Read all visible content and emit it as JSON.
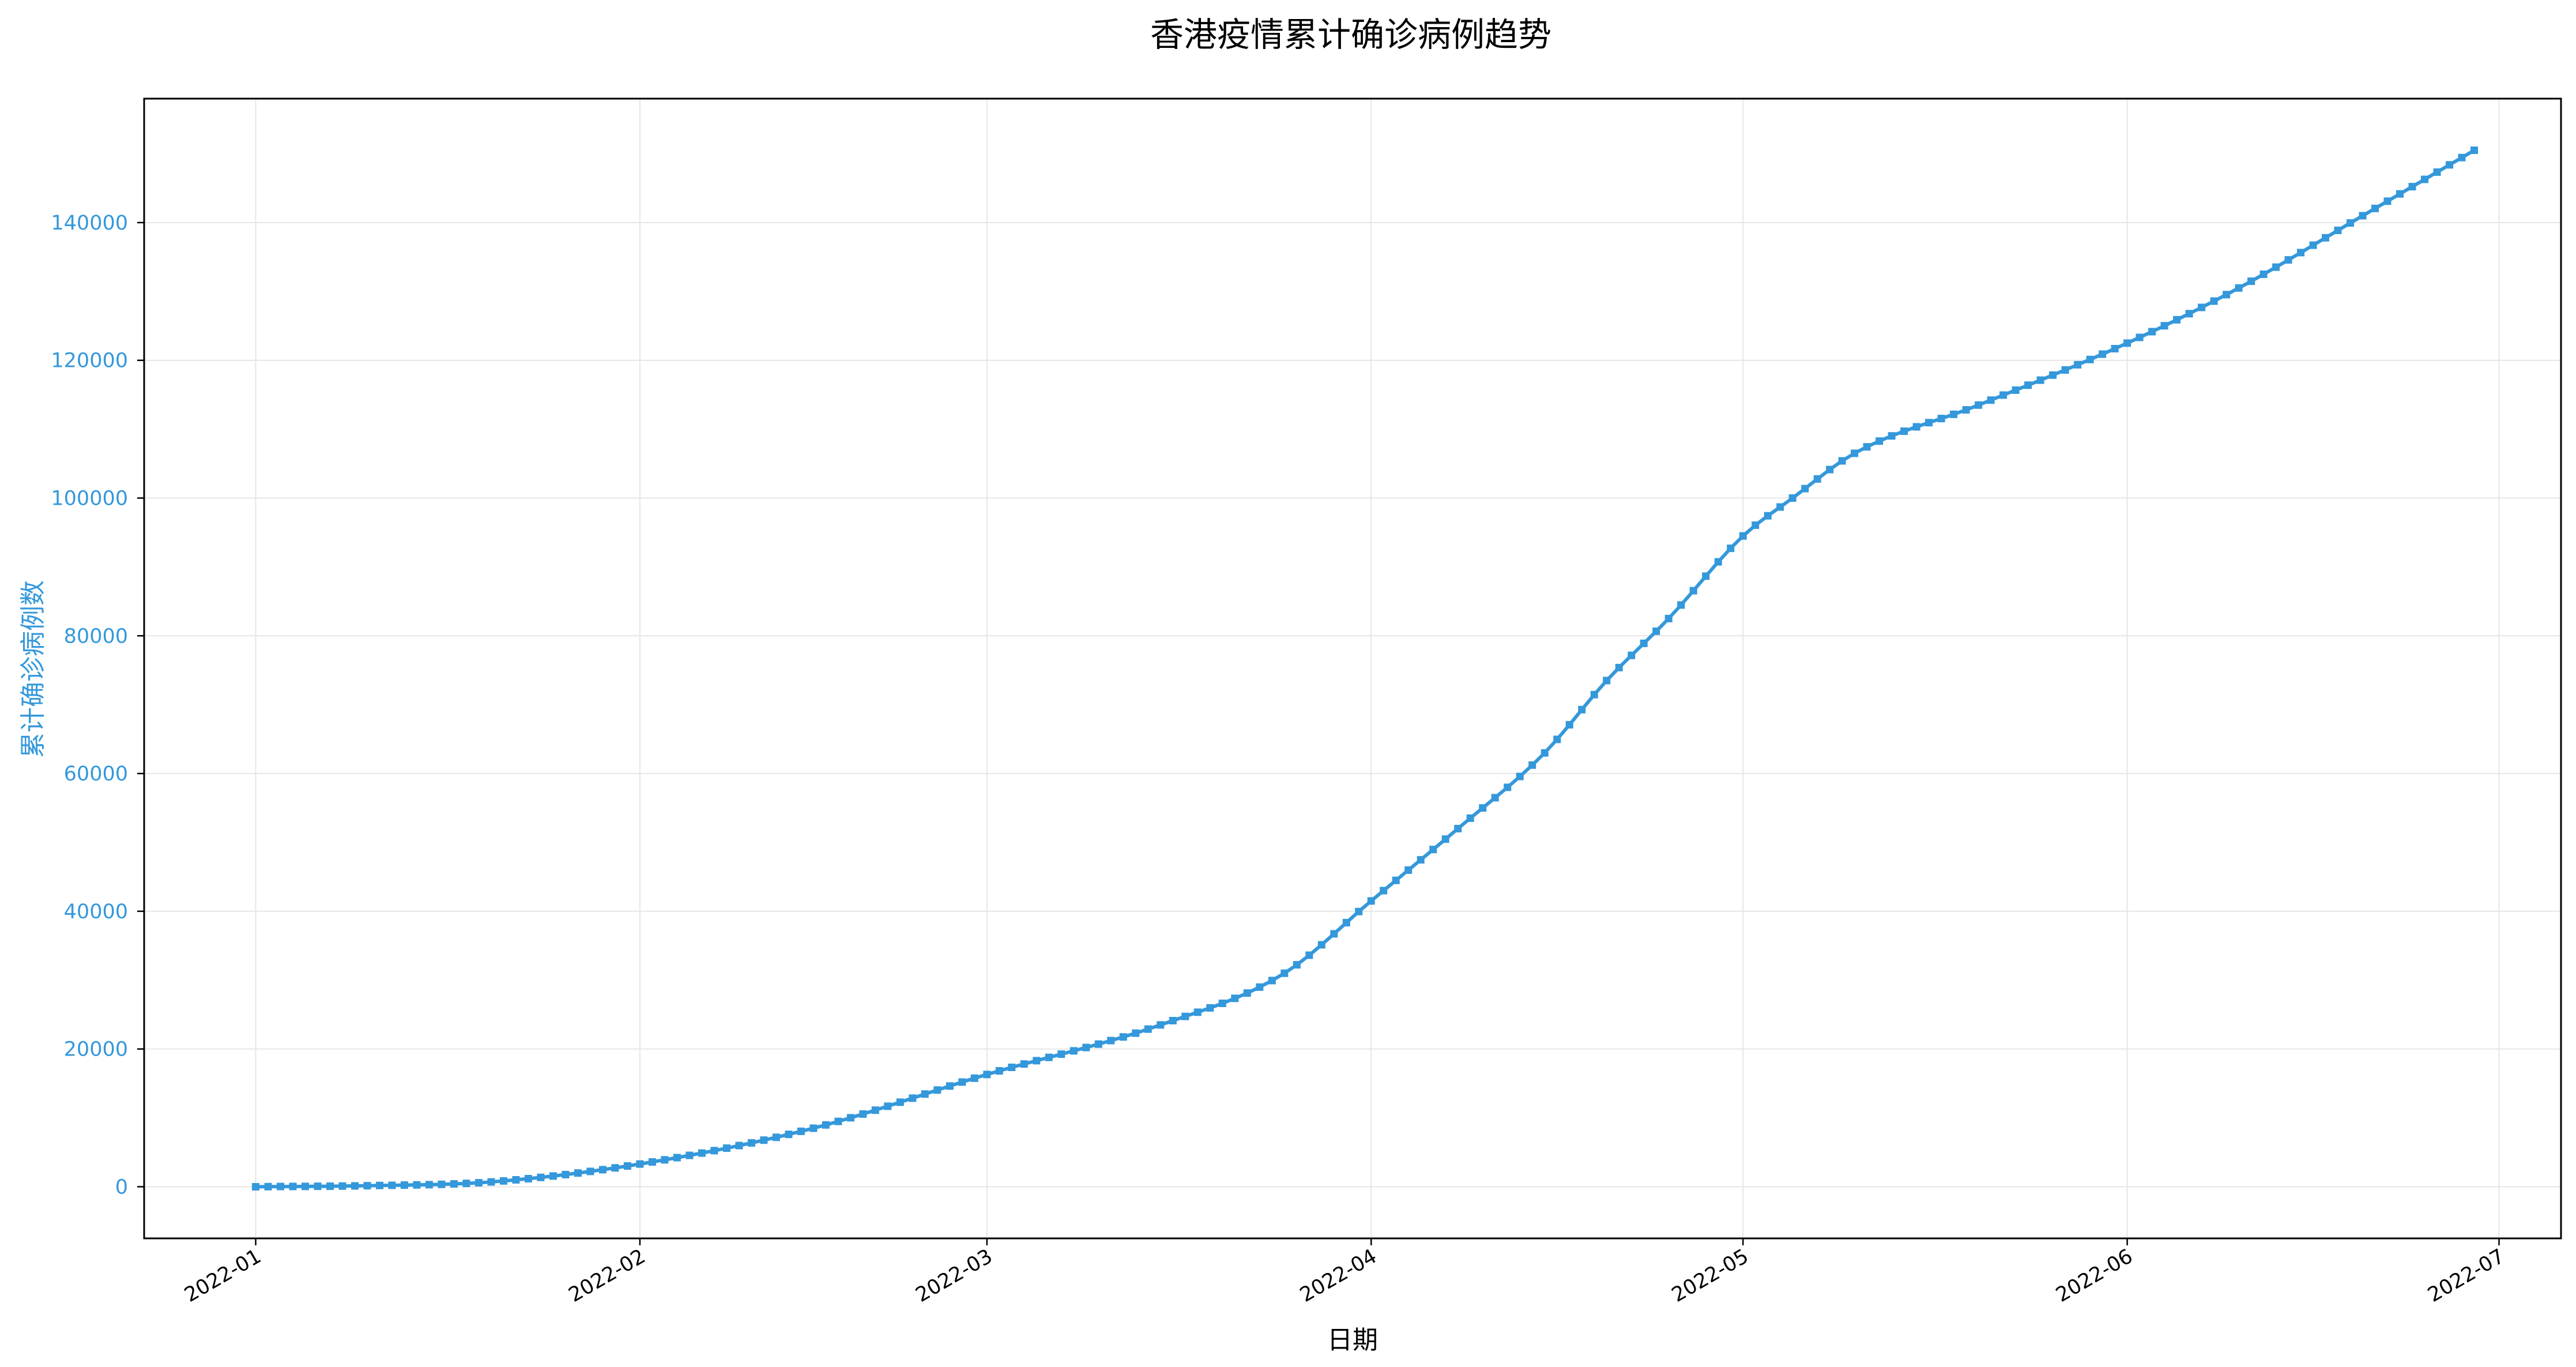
{
  "chart_data": {
    "type": "line",
    "title": "香港疫情累计确诊病例趋势",
    "xlabel": "日期",
    "ylabel": "累计确诊病例数",
    "x_range": [
      "2021-12-23",
      "2022-07-06"
    ],
    "ylim": [
      -7500,
      158000
    ],
    "grid": true,
    "colors": {
      "series": "#3498db",
      "y_axis_text": "#3498db",
      "text": "#000000",
      "grid": "#e6e6e6"
    },
    "x_ticks": [
      {
        "date": "2022-01-01",
        "label": "2022-01"
      },
      {
        "date": "2022-02-01",
        "label": "2022-02"
      },
      {
        "date": "2022-03-01",
        "label": "2022-03"
      },
      {
        "date": "2022-04-01",
        "label": "2022-04"
      },
      {
        "date": "2022-05-01",
        "label": "2022-05"
      },
      {
        "date": "2022-06-01",
        "label": "2022-06"
      },
      {
        "date": "2022-07-01",
        "label": "2022-07"
      }
    ],
    "y_ticks": [
      0,
      20000,
      40000,
      60000,
      80000,
      100000,
      120000,
      140000
    ],
    "series": [
      {
        "start_date": "2022-01-01",
        "end_date": "2022-06-29",
        "step_days": 1,
        "anchors": [
          [
            "2022-01-01",
            0
          ],
          [
            "2022-01-10",
            150
          ],
          [
            "2022-01-20",
            700
          ],
          [
            "2022-02-01",
            3300
          ],
          [
            "2022-02-15",
            8500
          ],
          [
            "2022-03-01",
            16300
          ],
          [
            "2022-03-15",
            23500
          ],
          [
            "2022-03-25",
            31000
          ],
          [
            "2022-04-01",
            41500
          ],
          [
            "2022-04-08",
            52000
          ],
          [
            "2022-04-15",
            63000
          ],
          [
            "2022-04-20",
            73500
          ],
          [
            "2022-04-25",
            82500
          ],
          [
            "2022-05-01",
            94500
          ],
          [
            "2022-05-05",
            100000
          ],
          [
            "2022-05-10",
            106500
          ],
          [
            "2022-05-20",
            113500
          ],
          [
            "2022-06-01",
            122500
          ],
          [
            "2022-06-10",
            130500
          ],
          [
            "2022-06-20",
            141000
          ],
          [
            "2022-06-29",
            150500
          ]
        ]
      }
    ]
  }
}
